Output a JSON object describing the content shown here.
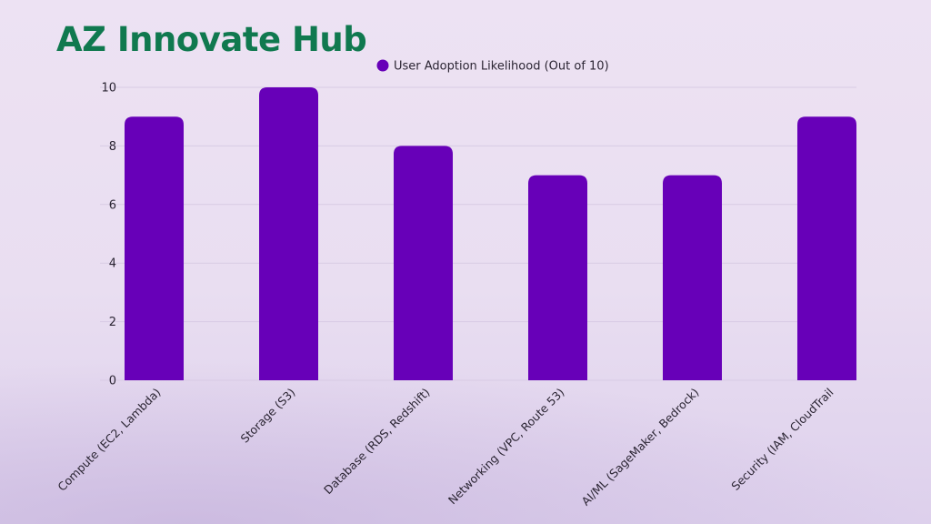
{
  "title": "AZ Innovate Hub",
  "colors": {
    "title": "#10794f",
    "bar": "#6700b8",
    "grid": "#d8cbe4",
    "text": "#2b2533"
  },
  "chart_data": {
    "type": "bar",
    "categories": [
      "Compute (EC2, Lambda)",
      "Storage (S3)",
      "Database (RDS, Redshift)",
      "Networking (VPC, Route 53)",
      "AI/ML (SageMaker, Bedrock)",
      "Security (IAM, CloudTrail"
    ],
    "series": [
      {
        "name": "User Adoption Likelihood (Out of 10)",
        "values": [
          9,
          10,
          8,
          7,
          7,
          9
        ]
      }
    ],
    "yticks": [
      0,
      2,
      4,
      6,
      8,
      10
    ],
    "ylim": [
      0,
      10
    ],
    "grid": true,
    "legend_position": "top-center"
  }
}
